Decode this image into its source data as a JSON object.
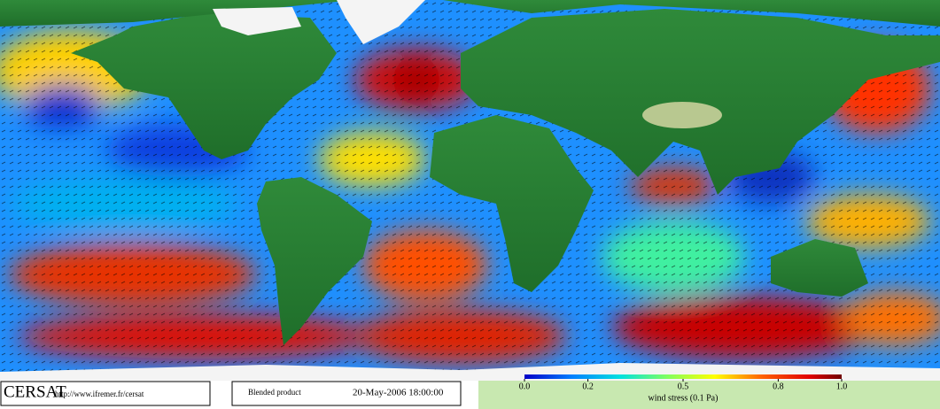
{
  "footer": {
    "logo": "CERSAT",
    "url": "http://www.ifremer.fr/cersat",
    "product": "Blended product",
    "date": "20-May-2006 18:00:00"
  },
  "colorbar": {
    "label": "wind stress (0.1 Pa)",
    "lim": [
      {
        "value": 0,
        "label": "0.0"
      },
      {
        "value": 1,
        "label": "1.0"
      }
    ],
    "ticks": [
      {
        "value": 0,
        "label": "0.0"
      },
      0.2,
      0.5,
      0.8,
      {
        "value": 1,
        "label": "1.0"
      }
    ]
  }
}
